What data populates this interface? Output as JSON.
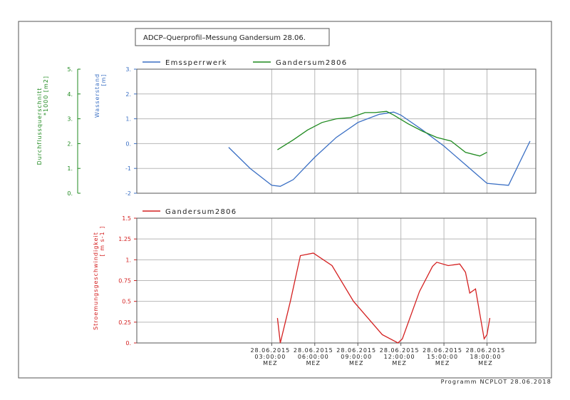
{
  "title": "ADCP–Querprofil–Messung  Gandersum  28.06.",
  "footer": "Programm NCPLOT   28.06.2018",
  "colors": {
    "blue": "#3a6fc4",
    "green": "#1f8a1f",
    "red": "#d42020",
    "grid": "#b8b8b8",
    "frame": "#555555"
  },
  "chart_data": [
    {
      "type": "line",
      "legend_position": "top",
      "grid": true,
      "x_unit": "hours since 28.06.2015 00:00 MEZ",
      "xlim": [
        -6.4,
        21.4
      ],
      "xticks": [
        {
          "x": 3,
          "date": "28.06.2015",
          "time": "03:00:00",
          "tz": "MEZ"
        },
        {
          "x": 6,
          "date": "28.06.2015",
          "time": "06:00:00",
          "tz": "MEZ"
        },
        {
          "x": 9,
          "date": "28.06.2015",
          "time": "09:00:00",
          "tz": "MEZ"
        },
        {
          "x": 12,
          "date": "28.06.2015",
          "time": "12:00:00",
          "tz": "MEZ"
        },
        {
          "x": 15,
          "date": "28.06.2015",
          "time": "15:00:00",
          "tz": "MEZ"
        },
        {
          "x": 18,
          "date": "28.06.2015",
          "time": "18:00:00",
          "tz": "MEZ"
        }
      ],
      "y_axes": [
        {
          "id": "wasserstand",
          "label": "Wasserstand",
          "unit": "[m]",
          "ylim": [
            -2,
            3
          ],
          "ticks": [
            "-2",
            "-1",
            "0.",
            "1.",
            "2.",
            "3."
          ],
          "color": "#3a6fc4"
        },
        {
          "id": "durchfluss",
          "label": "Durchflussquerschnitt",
          "unit": "*1000 [m2]",
          "ylim": [
            0,
            5
          ],
          "ticks": [
            "0.",
            "1.",
            "2.",
            "3.",
            "4.",
            "5."
          ],
          "color": "#1f8a1f"
        }
      ],
      "series": [
        {
          "name": "Emssperrwerk",
          "axis": "wasserstand",
          "color": "#3a6fc4",
          "x": [
            0,
            1.5,
            3,
            3.6,
            4.5,
            6,
            7.5,
            9,
            10.5,
            11.5,
            12,
            13.5,
            15,
            16.5,
            18,
            19.5,
            21
          ],
          "y": [
            -0.15,
            -1.0,
            -1.68,
            -1.72,
            -1.45,
            -0.55,
            0.25,
            0.85,
            1.18,
            1.27,
            1.15,
            0.55,
            -0.1,
            -0.85,
            -1.6,
            -1.68,
            0.1
          ]
        },
        {
          "name": "Gandersum2806",
          "axis": "wasserstand",
          "color": "#1f8a1f",
          "x": [
            3.4,
            4.5,
            5.5,
            6.5,
            7.5,
            8.5,
            9.5,
            10.2,
            11.0,
            11.5,
            12.5,
            13.5,
            14.5,
            15.5,
            16.5,
            17.5,
            18.0
          ],
          "y": [
            -0.25,
            0.15,
            0.55,
            0.85,
            1.0,
            1.05,
            1.25,
            1.25,
            1.3,
            1.15,
            0.8,
            0.5,
            0.25,
            0.1,
            -0.35,
            -0.5,
            -0.35
          ]
        }
      ]
    },
    {
      "type": "line",
      "legend_position": "top",
      "grid": true,
      "x_unit": "hours since 28.06.2015 00:00 MEZ",
      "xlim": [
        -6.4,
        21.4
      ],
      "ylabel": "Stroemungsgeschwindigkeit",
      "yunit": "[ m s-1 ]",
      "ylim": [
        0,
        1.5
      ],
      "ytick_labels": [
        "0.",
        "0.25",
        "0.5",
        "0.75",
        "1.",
        "1.25",
        "1.5"
      ],
      "series": [
        {
          "name": "Gandersum2806",
          "color": "#d42020",
          "x": [
            3.4,
            3.6,
            4.3,
            5.0,
            5.9,
            7.2,
            8.7,
            10.7,
            11.8,
            12.1,
            13.3,
            14.2,
            14.5,
            15.3,
            16.1,
            16.5,
            16.8,
            17.2,
            17.3,
            17.8,
            18.0,
            18.2
          ],
          "y": [
            0.3,
            0.0,
            0.5,
            1.05,
            1.08,
            0.93,
            0.5,
            0.1,
            0.0,
            0.05,
            0.62,
            0.92,
            0.97,
            0.93,
            0.95,
            0.85,
            0.6,
            0.65,
            0.55,
            0.05,
            0.1,
            0.3
          ]
        }
      ]
    }
  ]
}
